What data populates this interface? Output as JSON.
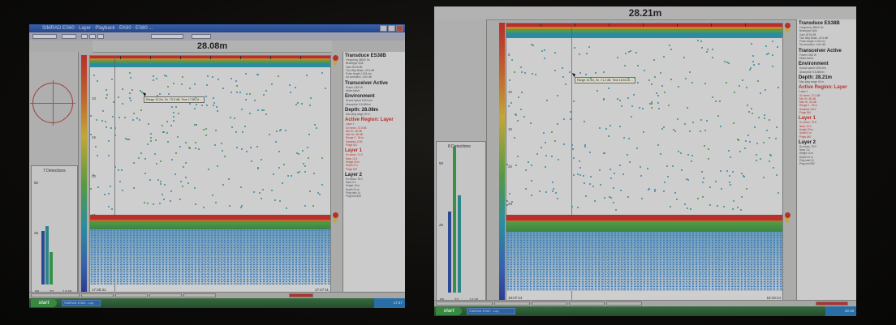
{
  "left_screen": {
    "window_title": "SIMRAD ES60 · Layer · Playback · EK60 · ES60 ...",
    "depth_title": "28.08m",
    "histogram": {
      "title": "7 Detections",
      "y_labels": [
        "50",
        "25"
      ],
      "x_labels": [
        "58",
        "32",
        "14:40"
      ]
    },
    "depth_labels": [
      "5",
      "10",
      "15",
      "20",
      "25",
      "30",
      "35"
    ],
    "tooltip": "Range 10.2m, Sv -70.5 dB, Time 17:58:04 ...",
    "timestamps": [
      "17:35:31",
      "17:47:11"
    ],
    "info_panel": {
      "transducer_heading": "Transduce ES38B",
      "transducer_lines": [
        "Frequency 38000 Hz",
        "Beamtype Split",
        "Gain 26.50 dB",
        "Two Way Beam -20.6 dB",
        "Pulse length 1.024 ms",
        "Sa correction -0.64 dB"
      ],
      "transceiver_heading": "Transceiver Active",
      "transceiver_lines": [
        "Power 1000 W",
        "Mode Active"
      ],
      "environment_heading": "Environment",
      "environment_lines": [
        "Sound speed 1494 m/s",
        "Absorption 9.8 dB/km"
      ],
      "depth_heading": "Depth: 28.08m",
      "depth_lines": [
        "Max ping range 40 m"
      ],
      "active_region_heading": "Active Region: Layer",
      "active_region_lines": [
        "Layer 1",
        "Sv mean -72.5 dB",
        "Min Sv -80 dB",
        "Max Sv -55 dB",
        "Range 2 - 26 m",
        "Samples 1240",
        "Pings 512"
      ],
      "layer1_heading": "Layer 1",
      "layer1_lines": [
        "Sv mean -71.0",
        "Nasc 12.4",
        "Height 20 m",
        "Depth 3 m",
        "Pings 512"
      ],
      "layer2_heading": "Layer 2",
      "layer2_lines": [
        "Sv mean -76.2",
        "Nasc 3.1",
        "Height 10 m",
        "Depth 24 m",
        "Ping start 14",
        "Ping end 526"
      ]
    },
    "taskbar": {
      "start_label": "start",
      "tasks": [
        "SIMRAD ES60 - Lay",
        "Echogram",
        "Playback",
        "Layer",
        "Settings"
      ],
      "clock": "17:47"
    }
  },
  "right_screen": {
    "depth_title": "28.21m",
    "histogram": {
      "title": "8 Detections",
      "y_labels": [
        "50",
        "25"
      ],
      "x_labels": [
        "58",
        "32",
        "14:40"
      ]
    },
    "depth_labels": [
      "5",
      "10",
      "15",
      "20",
      "25",
      "30",
      "35"
    ],
    "tooltip": "Range 10.1m, Sv -71.2 dB, Time 18:16:02 ...",
    "timestamps": [
      "18:07:14",
      "18:19:14"
    ],
    "info_panel": {
      "transducer_heading": "Transduce ES38B",
      "transducer_lines": [
        "Frequency 38000 Hz",
        "Beamtype Split",
        "Gain 26.50 dB",
        "Two Way Beam -20.6 dB",
        "Pulse length 1.024 ms",
        "Sa correction -0.64 dB"
      ],
      "transceiver_heading": "Transceiver Active",
      "transceiver_lines": [
        "Power 1000 W",
        "Mode Active"
      ],
      "environment_heading": "Environment",
      "environment_lines": [
        "Sound speed 1494 m/s",
        "Absorption 9.8 dB/km"
      ],
      "depth_heading": "Depth: 28.21m",
      "depth_lines": [
        "Max ping range 40 m"
      ],
      "active_region_heading": "Active Region: Layer",
      "active_region_lines": [
        "Layer 1",
        "Sv mean -72.3 dB",
        "Min Sv -80 dB",
        "Max Sv -54 dB",
        "Range 2 - 26 m",
        "Samples 1312",
        "Pings 540"
      ],
      "layer1_heading": "Layer 1",
      "layer1_lines": [
        "Sv mean -70.8",
        "Nasc 13.0",
        "Height 20 m",
        "Depth 3 m",
        "Pings 540"
      ],
      "layer2_heading": "Layer 2",
      "layer2_lines": [
        "Sv mean -75.9",
        "Nasc 3.4",
        "Height 10 m",
        "Depth 24 m",
        "Ping start 12",
        "Ping end 552"
      ]
    },
    "taskbar": {
      "start_label": "start",
      "tasks": [
        "SIMRAD ES60 - Lay",
        "Echogram",
        "Playback",
        "Layer",
        "Settings"
      ],
      "clock": "18:19"
    }
  }
}
